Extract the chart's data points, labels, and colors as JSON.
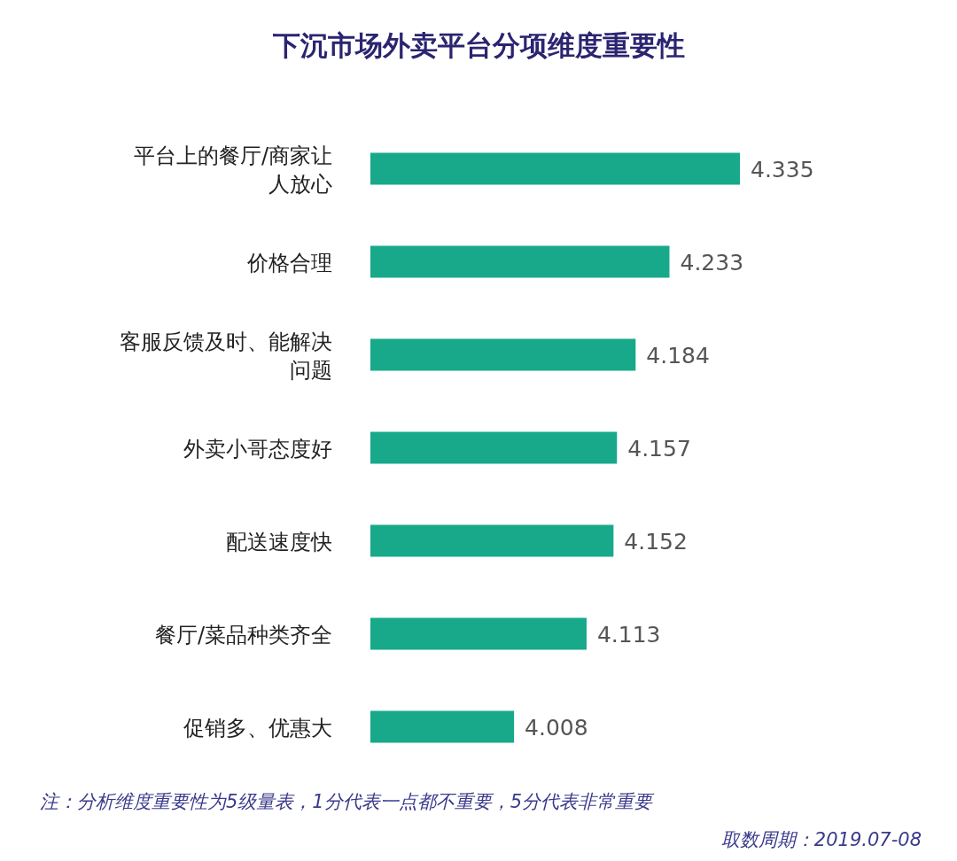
{
  "chart_data": {
    "type": "bar",
    "orientation": "horizontal",
    "title": "下沉市场外卖平台分项维度重要性",
    "categories": [
      "平台上的餐厅/商家让人放心",
      "价格合理",
      "客服反馈及时、能解决问题",
      "外卖小哥态度好",
      "配送速度快",
      "餐厅/菜品种类齐全",
      "促销多、优惠大"
    ],
    "values": [
      4.335,
      4.233,
      4.184,
      4.157,
      4.152,
      4.113,
      4.008
    ],
    "color": "#17a98a",
    "xlim": [
      3.8,
      4.335
    ],
    "data_labels": true,
    "tick_labels": "y",
    "annotations": [
      "注：分析维度重要性为5级量表，1分代表一点都不重要，5分代表非常重要",
      "取数周期：2019.07-08"
    ]
  }
}
